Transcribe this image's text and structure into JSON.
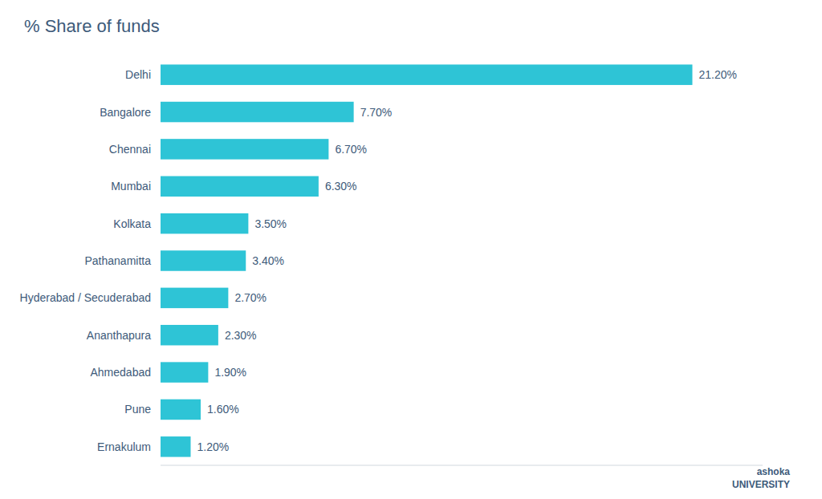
{
  "chart_data": {
    "type": "bar",
    "orientation": "horizontal",
    "title": "% Share of funds",
    "categories": [
      "Delhi",
      "Bangalore",
      "Chennai",
      "Mumbai",
      "Kolkata",
      "Pathanamitta",
      "Hyderabad / Secuderabad",
      "Ananthapura",
      "Ahmedabad",
      "Pune",
      "Ernakulum"
    ],
    "values": [
      21.2,
      7.7,
      6.7,
      6.3,
      3.5,
      3.4,
      2.7,
      2.3,
      1.9,
      1.6,
      1.2
    ],
    "value_labels": [
      "21.20%",
      "7.70%",
      "6.70%",
      "6.30%",
      "3.50%",
      "3.40%",
      "2.70%",
      "2.30%",
      "1.90%",
      "1.60%",
      "1.20%"
    ],
    "data_labels": true,
    "color": "#2EC4D6",
    "xlim": [
      0,
      24
    ],
    "tick_labels": "y",
    "grid": false,
    "annotations": [
      "ashoka",
      "UNIVERSITY"
    ]
  }
}
